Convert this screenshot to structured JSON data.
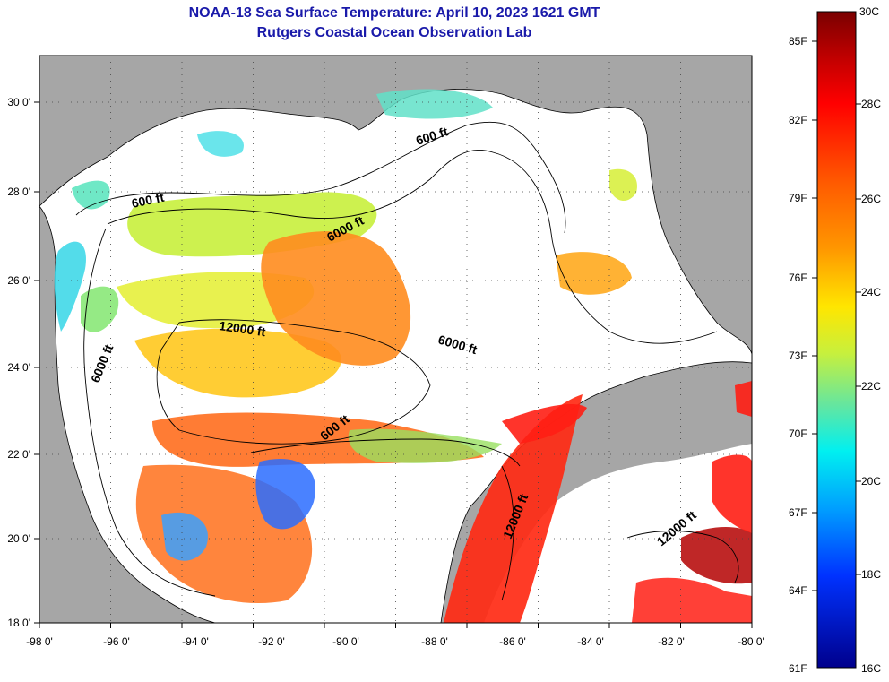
{
  "header": {
    "title": "NOAA-18 Sea Surface Temperature:  April 10, 2023 1621 GMT",
    "subtitle": "Rutgers Coastal Ocean Observation Lab"
  },
  "map": {
    "lat_labels": [
      "30 0'",
      "28 0'",
      "26 0'",
      "24 0'",
      "22 0'",
      "20 0'",
      "18 0'"
    ],
    "lon_labels": [
      "-98 0'",
      "-96 0'",
      "-94 0'",
      "-92 0'",
      "-90 0'",
      "-88 0'",
      "-86 0'",
      "-84 0'",
      "-82 0'",
      "-80 0'"
    ],
    "contour_labels": [
      "600 ft",
      "600 ft",
      "6000 ft",
      "6000 ft",
      "6000 ft",
      "12000 ft",
      "600 ft",
      "12000 ft",
      "12000 ft"
    ]
  },
  "colorbar": {
    "fahrenheit_labels": [
      "85F",
      "82F",
      "79F",
      "76F",
      "73F",
      "70F",
      "67F",
      "64F",
      "61F"
    ],
    "celsius_labels": [
      "30C",
      "28C",
      "26C",
      "24C",
      "22C",
      "20C",
      "18C",
      "16C"
    ]
  },
  "colors": {
    "title": "#1a1aaa",
    "land": "#a6a6a6",
    "ocean_nodata": "#ffffff"
  }
}
